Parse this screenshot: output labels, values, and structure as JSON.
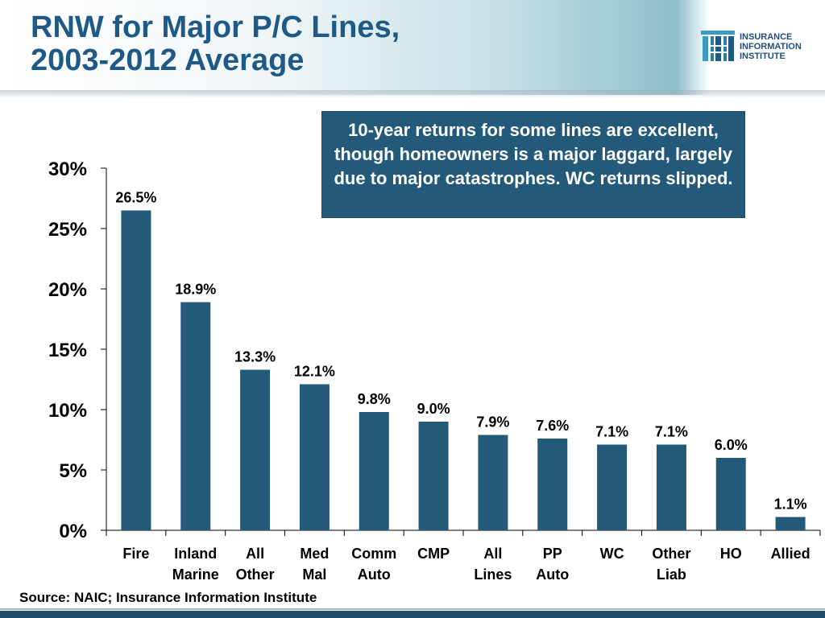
{
  "title_line1": "RNW for Major P/C Lines,",
  "title_line2": "2003-2012 Average",
  "logo": {
    "line1": "INSURANCE",
    "line2": "INFORMATION",
    "line3": "INSTITUTE"
  },
  "callout": "10-year returns for some lines are excellent, though homeowners is a major laggard, largely due to major catastrophes.  WC returns slipped.",
  "source": "Source:  NAIC; Insurance Information Institute",
  "colors": {
    "bar": "#235a7a",
    "title": "#1f5a86",
    "callout_bg": "#235a7a"
  },
  "chart_data": {
    "type": "bar",
    "categories": [
      [
        "Fire"
      ],
      [
        "Inland",
        "Marine"
      ],
      [
        "All",
        "Other"
      ],
      [
        "Med",
        "Mal"
      ],
      [
        "Comm",
        "Auto"
      ],
      [
        "CMP"
      ],
      [
        "All",
        "Lines"
      ],
      [
        "PP",
        "Auto"
      ],
      [
        "WC"
      ],
      [
        "Other",
        "Liab"
      ],
      [
        "HO"
      ],
      [
        "Allied"
      ]
    ],
    "values": [
      26.5,
      18.9,
      13.3,
      12.1,
      9.8,
      9.0,
      7.9,
      7.6,
      7.1,
      7.1,
      6.0,
      1.1
    ],
    "value_labels": [
      "26.5%",
      "18.9%",
      "13.3%",
      "12.1%",
      "9.8%",
      "9.0%",
      "7.9%",
      "7.6%",
      "7.1%",
      "7.1%",
      "6.0%",
      "1.1%"
    ],
    "y_ticks": [
      "0%",
      "5%",
      "10%",
      "15%",
      "20%",
      "25%",
      "30%"
    ],
    "ylim": [
      0,
      30
    ],
    "grid": false
  }
}
